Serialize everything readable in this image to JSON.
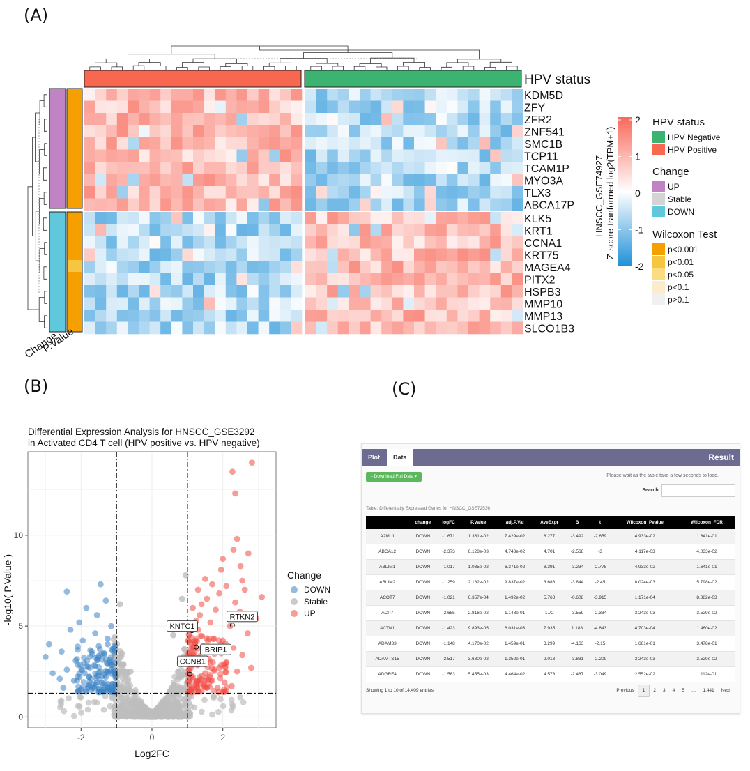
{
  "panel_labels": {
    "a": "(A)",
    "b": "(B)",
    "c": "(C)"
  },
  "heatmap": {
    "hpv_title": "HPV status",
    "genes": [
      "KDM5D",
      "ZFY",
      "ZFR2",
      "ZNF541",
      "SMC1B",
      "TCP11",
      "TCAM1P",
      "MYO3A",
      "TLX3",
      "ABCA17P",
      "KLK5",
      "KRT1",
      "CCNA1",
      "KRT75",
      "MAGEA4",
      "PITX2",
      "HSPB3",
      "MMP10",
      "MMP13",
      "SLCO1B3"
    ],
    "annotation_labels": {
      "change": "Change",
      "pvalue": "P.Value"
    },
    "colorbar": {
      "title1": "HNSCC_GSE74927",
      "title2": "Z-score-tranformed log2(TPM+1)",
      "ticks": [
        "2",
        "1",
        "0",
        "-1",
        "-2"
      ]
    },
    "legends": {
      "hpv": {
        "title": "HPV status",
        "items": [
          {
            "label": "HPV Negative",
            "color": "#3cb371"
          },
          {
            "label": "HPV Positive",
            "color": "#f8674f"
          }
        ]
      },
      "change": {
        "title": "Change",
        "items": [
          {
            "label": "UP",
            "color": "#c084c4"
          },
          {
            "label": "Stable",
            "color": "#d4d4d4"
          },
          {
            "label": "DOWN",
            "color": "#5fc8dc"
          }
        ]
      },
      "wilcoxon": {
        "title": "Wilcoxon Test",
        "items": [
          {
            "label": "p<0.001",
            "color": "#f5a000"
          },
          {
            "label": "p<0.01",
            "color": "#f7c640"
          },
          {
            "label": "p<0.05",
            "color": "#fbdc80"
          },
          {
            "label": "p<0.1",
            "color": "#fbeccc"
          },
          {
            "label": "p>0.1",
            "color": "#f0f0f0"
          }
        ]
      }
    },
    "colors": {
      "high": "#f8695a",
      "mid": "#ffffff",
      "low": "#1e90d8"
    }
  },
  "chart_data": [
    {
      "type": "scatter",
      "title": "Differential Expression Analysis for  HNSCC_GSE3292",
      "subtitle": "in  Activated CD4 T cell  (HPV positive vs. HPV negative)",
      "xlabel": "Log2FC",
      "ylabel": "-log10( P.Value )",
      "xlim": [
        -3.5,
        3.5
      ],
      "ylim": [
        -0.6,
        14.6
      ],
      "xticks": [
        -2,
        0,
        2
      ],
      "yticks": [
        0,
        5,
        10
      ],
      "cutoffs": {
        "logfc": [
          -1,
          1
        ],
        "p_log10": 1.3
      },
      "legend": {
        "title": "Change",
        "items": [
          {
            "label": "DOWN",
            "color": "#3a82c4"
          },
          {
            "label": "Stable",
            "color": "#bdbdbd"
          },
          {
            "label": "UP",
            "color": "#f24b43"
          }
        ]
      },
      "labeled_points": [
        {
          "label": "RTKN2",
          "x": 2.27,
          "y": 5.05
        },
        {
          "label": "KNTC1",
          "x": 1.13,
          "y": 4.75
        },
        {
          "label": "BRIP1",
          "x": 1.25,
          "y": 3.85
        },
        {
          "label": "CCNB1",
          "x": 1.07,
          "y": 2.35
        }
      ],
      "series": [
        {
          "name": "UP",
          "points": [
            [
              2.82,
              14.0
            ],
            [
              2.27,
              13.5
            ],
            [
              2.35,
              12.3
            ],
            [
              2.4,
              9.8
            ],
            [
              2.3,
              9.2
            ],
            [
              2.72,
              9.0
            ],
            [
              2.0,
              8.7
            ],
            [
              2.5,
              8.3
            ],
            [
              1.95,
              8.1
            ],
            [
              2.55,
              7.5
            ],
            [
              1.5,
              7.6
            ],
            [
              2.1,
              7.2
            ],
            [
              1.3,
              7.0
            ],
            [
              1.7,
              7.3
            ],
            [
              2.62,
              7.0
            ],
            [
              1.9,
              6.8
            ],
            [
              3.1,
              6.6
            ],
            [
              1.55,
              6.5
            ],
            [
              2.35,
              6.3
            ],
            [
              1.4,
              6.2
            ],
            [
              1.8,
              5.9
            ],
            [
              2.48,
              5.8
            ],
            [
              2.95,
              5.4
            ],
            [
              1.65,
              5.2
            ],
            [
              2.2,
              5.0
            ],
            [
              1.3,
              4.8
            ],
            [
              2.7,
              4.6
            ],
            [
              1.75,
              4.3
            ],
            [
              2.0,
              4.2
            ],
            [
              1.45,
              3.9
            ],
            [
              2.3,
              3.8
            ],
            [
              1.2,
              3.5
            ],
            [
              2.55,
              3.4
            ],
            [
              1.6,
              3.2
            ],
            [
              2.1,
              3.0
            ],
            [
              1.3,
              2.9
            ],
            [
              1.9,
              2.7
            ],
            [
              2.4,
              2.5
            ],
            [
              1.5,
              2.4
            ],
            [
              2.8,
              2.7
            ],
            [
              1.15,
              2.2
            ],
            [
              1.7,
              2.0
            ],
            [
              2.05,
              1.9
            ],
            [
              1.25,
              1.8
            ],
            [
              1.55,
              1.6
            ],
            [
              1.85,
              1.6
            ],
            [
              2.25,
              1.7
            ],
            [
              1.1,
              1.5
            ],
            [
              1.4,
              1.4
            ],
            [
              1.35,
              5.6
            ],
            [
              1.15,
              6.0
            ],
            [
              1.25,
              5.3
            ],
            [
              1.05,
              4.5
            ],
            [
              1.95,
              3.5
            ],
            [
              1.1,
              3.3
            ]
          ]
        },
        {
          "name": "DOWN",
          "points": [
            [
              -1.45,
              7.3
            ],
            [
              -2.4,
              6.9
            ],
            [
              -1.3,
              6.4
            ],
            [
              -1.85,
              6.0
            ],
            [
              -1.55,
              5.6
            ],
            [
              -2.05,
              5.2
            ],
            [
              -1.15,
              5.0
            ],
            [
              -2.3,
              4.8
            ],
            [
              -1.6,
              4.6
            ],
            [
              -1.25,
              4.3
            ],
            [
              -2.9,
              4.0
            ],
            [
              -1.95,
              4.2
            ],
            [
              -1.5,
              3.9
            ],
            [
              -2.55,
              3.6
            ],
            [
              -1.35,
              3.5
            ],
            [
              -1.75,
              3.3
            ],
            [
              -2.15,
              3.1
            ],
            [
              -3.0,
              3.3
            ],
            [
              -1.2,
              3.0
            ],
            [
              -1.6,
              2.8
            ],
            [
              -2.4,
              2.6
            ],
            [
              -1.45,
              2.5
            ],
            [
              -1.9,
              2.4
            ],
            [
              -2.8,
              2.4
            ],
            [
              -1.3,
              2.2
            ],
            [
              -2.2,
              2.0
            ],
            [
              -1.55,
              1.9
            ],
            [
              -1.1,
              1.8
            ],
            [
              -1.8,
              1.7
            ],
            [
              -2.5,
              1.6
            ],
            [
              -1.35,
              1.5
            ],
            [
              -2.0,
              1.5
            ],
            [
              -1.15,
              2.6
            ],
            [
              -1.7,
              3.6
            ],
            [
              -2.6,
              2.1
            ],
            [
              -1.25,
              4.0
            ]
          ]
        },
        {
          "name": "Stable",
          "points": [
            [
              -0.95,
              1.5
            ],
            [
              0.95,
              1.6
            ],
            [
              0.9,
              3.0
            ],
            [
              0.95,
              7.8
            ],
            [
              0.85,
              6.5
            ],
            [
              0.75,
              5.0
            ],
            [
              -0.85,
              3.5
            ],
            [
              -0.9,
              6.2
            ],
            [
              0.6,
              4.5
            ],
            [
              -0.6,
              2.5
            ]
          ]
        }
      ]
    },
    {
      "type": "table",
      "tabs": [
        "Plot",
        "Data"
      ],
      "header_right": "Result",
      "download_label": "Download Full Data ▾",
      "wait_note": "Please wait as the table take a few seconds to load.",
      "search_label": "Search:",
      "caption": "Table: Differentially Expressed Genes for HNSCC_GSE72536",
      "columns": [
        "",
        "change",
        "logFC",
        "P.Value",
        "adj.P.Val",
        "AveExpr",
        "B",
        "t",
        "Wilcoxon_Pvalue",
        "Wilcoxon_FDR"
      ],
      "rows": [
        [
          "A2ML1",
          "DOWN",
          "-1.671",
          "1.361e-02",
          "7.429e-02",
          "8.277",
          "-3.492",
          "-2.659",
          "4.933e-02",
          "1.641e-01"
        ],
        [
          "ABCA12",
          "DOWN",
          "-2.373",
          "6.128e-03",
          "4.743e-02",
          "4.701",
          "-2.568",
          "-3",
          "4.117e-03",
          "4.033e-02"
        ],
        [
          "ABLIM1",
          "DOWN",
          "-1.017",
          "1.035e-02",
          "6.371e-02",
          "8.391",
          "-3.234",
          "-2.778",
          "4.933e-02",
          "1.641e-01"
        ],
        [
          "ABLIM2",
          "DOWN",
          "-1.259",
          "2.182e-02",
          "9.837e-02",
          "3.686",
          "-3.844",
          "-2.45",
          "8.024e-03",
          "5.798e-02"
        ],
        [
          "ACOT7",
          "DOWN",
          "-1.021",
          "6.357e-04",
          "1.492e-02",
          "5.768",
          "-0.608",
          "-3.915",
          "1.171e-04",
          "8.882e-03"
        ],
        [
          "ACP7",
          "DOWN",
          "-2.685",
          "2.816e-02",
          "1.148e-01",
          "1.72",
          "-3.559",
          "-2.334",
          "3.243e-03",
          "3.529e-02"
        ],
        [
          "ACTN1",
          "DOWN",
          "-1.423",
          "9.893e-05",
          "6.031e-03",
          "7.935",
          "1.188",
          "-4.843",
          "4.703e-04",
          "1.460e-02"
        ],
        [
          "ADAM33",
          "DOWN",
          "-1.148",
          "4.170e-02",
          "1.459e-01",
          "3.299",
          "-4.163",
          "-2.15",
          "1.661e-01",
          "3.478e-01"
        ],
        [
          "ADAMTS15",
          "DOWN",
          "-2.517",
          "3.680e-02",
          "1.352e-01",
          "2.013",
          "-3.831",
          "-2.209",
          "3.243e-03",
          "3.529e-02"
        ],
        [
          "ADGRF4",
          "DOWN",
          "-1.563",
          "5.455e-03",
          "4.464e-02",
          "4.576",
          "-2.487",
          "-3.049",
          "2.552e-02",
          "1.112e-01"
        ]
      ],
      "info": "Showing 1 to 10 of 14,409 entries",
      "pager": [
        "Previous",
        "1",
        "2",
        "3",
        "4",
        "5",
        "…",
        "1,441",
        "Next"
      ]
    }
  ]
}
